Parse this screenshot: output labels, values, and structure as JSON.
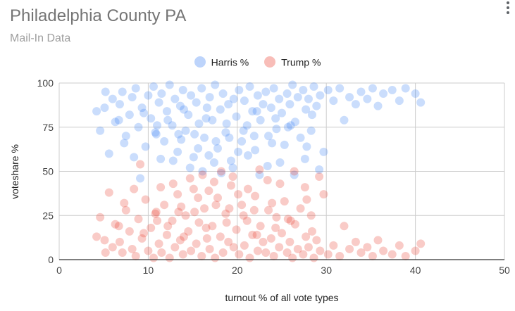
{
  "header": {
    "title": "Philadelphia County PA",
    "subtitle": "Mail-In Data"
  },
  "colors": {
    "harris": "#4285f4",
    "trump": "#ea4335",
    "grid": "#cccccc",
    "axis": "#333333"
  },
  "chart_data": {
    "type": "scatter",
    "title": "Philadelphia County PA",
    "subtitle": "Mail-In Data",
    "xlabel": "turnout % of all vote types",
    "ylabel": "voteshare %",
    "xlim": [
      0,
      50
    ],
    "ylim": [
      0,
      100
    ],
    "x_ticks": [
      "0",
      "10",
      "20",
      "30",
      "40",
      "50"
    ],
    "y_ticks": [
      "0",
      "25",
      "50",
      "75",
      "100"
    ],
    "grid": true,
    "legend_position": "top-center",
    "series": [
      {
        "name": "Harris %",
        "color": "#4285f4",
        "points": [
          [
            4.2,
            84
          ],
          [
            4.6,
            73
          ],
          [
            5.1,
            86
          ],
          [
            5.6,
            60
          ],
          [
            5.2,
            95
          ],
          [
            6.0,
            91
          ],
          [
            6.3,
            78
          ],
          [
            6.8,
            88
          ],
          [
            7.1,
            95
          ],
          [
            7.5,
            70
          ],
          [
            7.9,
            82
          ],
          [
            8.2,
            92
          ],
          [
            8.6,
            97
          ],
          [
            8.9,
            75
          ],
          [
            9.3,
            86
          ],
          [
            9.7,
            64
          ],
          [
            10.0,
            93
          ],
          [
            10.3,
            80
          ],
          [
            10.6,
            98
          ],
          [
            10.9,
            71
          ],
          [
            11.2,
            89
          ],
          [
            11.5,
            94
          ],
          [
            11.8,
            67
          ],
          [
            12.1,
            84
          ],
          [
            12.4,
            99
          ],
          [
            12.7,
            76
          ],
          [
            13.0,
            91
          ],
          [
            13.3,
            61
          ],
          [
            13.6,
            87
          ],
          [
            13.9,
            96
          ],
          [
            14.2,
            73
          ],
          [
            14.5,
            82
          ],
          [
            14.8,
            93
          ],
          [
            15.1,
            58
          ],
          [
            15.4,
            89
          ],
          [
            15.7,
            77
          ],
          [
            16.0,
            97
          ],
          [
            16.3,
            69
          ],
          [
            16.6,
            86
          ],
          [
            16.9,
            92
          ],
          [
            17.2,
            79
          ],
          [
            17.5,
            99
          ],
          [
            17.8,
            63
          ],
          [
            18.1,
            85
          ],
          [
            18.4,
            94
          ],
          [
            18.7,
            72
          ],
          [
            19.0,
            88
          ],
          [
            19.3,
            56
          ],
          [
            19.6,
            91
          ],
          [
            19.9,
            81
          ],
          [
            20.2,
            96
          ],
          [
            20.5,
            67
          ],
          [
            20.8,
            90
          ],
          [
            21.1,
            76
          ],
          [
            21.4,
            98
          ],
          [
            21.7,
            84
          ],
          [
            22.0,
            62
          ],
          [
            22.3,
            93
          ],
          [
            22.6,
            79
          ],
          [
            22.9,
            88
          ],
          [
            23.2,
            95
          ],
          [
            23.5,
            70
          ],
          [
            23.8,
            86
          ],
          [
            24.1,
            97
          ],
          [
            24.4,
            74
          ],
          [
            24.7,
            91
          ],
          [
            25.0,
            83
          ],
          [
            25.3,
            65
          ],
          [
            25.6,
            94
          ],
          [
            25.9,
            88
          ],
          [
            26.2,
            99
          ],
          [
            26.5,
            78
          ],
          [
            26.8,
            92
          ],
          [
            27.1,
            69
          ],
          [
            27.4,
            96
          ],
          [
            27.7,
            85
          ],
          [
            28.0,
            91
          ],
          [
            28.3,
            73
          ],
          [
            28.6,
            98
          ],
          [
            28.9,
            87
          ],
          [
            29.3,
            93
          ],
          [
            29.7,
            61
          ],
          [
            30.2,
            96
          ],
          [
            30.8,
            90
          ],
          [
            31.5,
            97
          ],
          [
            32.0,
            79
          ],
          [
            32.6,
            92
          ],
          [
            33.3,
            88
          ],
          [
            33.9,
            95
          ],
          [
            34.6,
            91
          ],
          [
            35.2,
            97
          ],
          [
            35.8,
            87
          ],
          [
            36.4,
            94
          ],
          [
            37.4,
            96
          ],
          [
            38.2,
            90
          ],
          [
            38.9,
            97
          ],
          [
            40.0,
            94
          ],
          [
            40.6,
            89
          ],
          [
            9.1,
            46
          ],
          [
            12.8,
            56
          ],
          [
            14.7,
            52
          ],
          [
            16.1,
            50
          ],
          [
            17.4,
            55
          ],
          [
            18.2,
            49
          ],
          [
            19.5,
            52
          ],
          [
            21.2,
            59
          ],
          [
            22.5,
            48
          ],
          [
            23.4,
            53
          ],
          [
            24.8,
            55
          ],
          [
            26.4,
            48
          ],
          [
            27.6,
            57
          ],
          [
            29.2,
            51
          ],
          [
            7.3,
            66
          ],
          [
            11.4,
            57
          ],
          [
            13.7,
            68
          ],
          [
            15.6,
            63
          ],
          [
            16.8,
            59
          ],
          [
            20.1,
            61
          ],
          [
            23.9,
            66
          ],
          [
            27.8,
            64
          ],
          [
            8.4,
            58
          ],
          [
            10.8,
            72
          ],
          [
            12.2,
            79
          ],
          [
            14.0,
            85
          ],
          [
            15.2,
            71
          ],
          [
            17.6,
            67
          ],
          [
            18.8,
            77
          ],
          [
            20.7,
            73
          ],
          [
            21.9,
            70
          ],
          [
            24.3,
            80
          ],
          [
            25.7,
            75
          ],
          [
            28.4,
            82
          ],
          [
            6.7,
            79
          ],
          [
            9.5,
            83
          ],
          [
            11.0,
            76
          ],
          [
            13.4,
            71
          ],
          [
            16.5,
            80
          ],
          [
            19.1,
            69
          ],
          [
            22.2,
            84
          ],
          [
            26.0,
            76
          ]
        ]
      },
      {
        "name": "Trump %",
        "color": "#ea4335",
        "points": [
          [
            4.2,
            13
          ],
          [
            4.6,
            24
          ],
          [
            5.1,
            11
          ],
          [
            5.6,
            38
          ],
          [
            5.2,
            4
          ],
          [
            6.0,
            7
          ],
          [
            6.3,
            20
          ],
          [
            6.8,
            10
          ],
          [
            7.1,
            4
          ],
          [
            7.5,
            28
          ],
          [
            7.9,
            16
          ],
          [
            8.2,
            6
          ],
          [
            8.6,
            2
          ],
          [
            8.9,
            23
          ],
          [
            9.3,
            12
          ],
          [
            9.7,
            34
          ],
          [
            10.0,
            5
          ],
          [
            10.3,
            18
          ],
          [
            10.6,
            1
          ],
          [
            10.9,
            27
          ],
          [
            11.2,
            9
          ],
          [
            11.5,
            4
          ],
          [
            11.8,
            31
          ],
          [
            12.1,
            14
          ],
          [
            12.4,
            1
          ],
          [
            12.7,
            22
          ],
          [
            13.0,
            7
          ],
          [
            13.3,
            37
          ],
          [
            13.6,
            11
          ],
          [
            13.9,
            3
          ],
          [
            14.2,
            25
          ],
          [
            14.5,
            16
          ],
          [
            14.8,
            5
          ],
          [
            15.1,
            40
          ],
          [
            15.4,
            9
          ],
          [
            15.7,
            21
          ],
          [
            16.0,
            2
          ],
          [
            16.3,
            29
          ],
          [
            16.6,
            12
          ],
          [
            16.9,
            6
          ],
          [
            17.2,
            19
          ],
          [
            17.5,
            1
          ],
          [
            17.8,
            35
          ],
          [
            18.1,
            13
          ],
          [
            18.4,
            4
          ],
          [
            18.7,
            26
          ],
          [
            19.0,
            10
          ],
          [
            19.3,
            42
          ],
          [
            19.6,
            7
          ],
          [
            19.9,
            17
          ],
          [
            20.2,
            3
          ],
          [
            20.5,
            31
          ],
          [
            20.8,
            8
          ],
          [
            21.1,
            22
          ],
          [
            21.4,
            1
          ],
          [
            21.7,
            14
          ],
          [
            22.0,
            36
          ],
          [
            22.3,
            5
          ],
          [
            22.6,
            19
          ],
          [
            22.9,
            10
          ],
          [
            23.2,
            4
          ],
          [
            23.5,
            28
          ],
          [
            23.8,
            12
          ],
          [
            24.1,
            2
          ],
          [
            24.4,
            24
          ],
          [
            24.7,
            7
          ],
          [
            25.0,
            15
          ],
          [
            25.3,
            33
          ],
          [
            25.6,
            4
          ],
          [
            25.9,
            10
          ],
          [
            26.2,
            1
          ],
          [
            26.5,
            20
          ],
          [
            26.8,
            6
          ],
          [
            27.1,
            29
          ],
          [
            27.4,
            3
          ],
          [
            27.7,
            13
          ],
          [
            28.0,
            7
          ],
          [
            28.3,
            25
          ],
          [
            28.6,
            1
          ],
          [
            28.9,
            11
          ],
          [
            29.3,
            5
          ],
          [
            29.7,
            37
          ],
          [
            30.2,
            3
          ],
          [
            30.8,
            8
          ],
          [
            31.5,
            2
          ],
          [
            32.0,
            19
          ],
          [
            32.6,
            6
          ],
          [
            33.3,
            10
          ],
          [
            33.9,
            4
          ],
          [
            34.6,
            7
          ],
          [
            35.2,
            2
          ],
          [
            35.8,
            11
          ],
          [
            36.4,
            5
          ],
          [
            37.4,
            3
          ],
          [
            38.2,
            8
          ],
          [
            38.9,
            2
          ],
          [
            40.0,
            5
          ],
          [
            40.6,
            9
          ],
          [
            9.1,
            54
          ],
          [
            12.8,
            43
          ],
          [
            14.7,
            46
          ],
          [
            16.1,
            48
          ],
          [
            17.4,
            44
          ],
          [
            18.2,
            50
          ],
          [
            19.5,
            47
          ],
          [
            21.2,
            40
          ],
          [
            22.5,
            51
          ],
          [
            23.4,
            45
          ],
          [
            24.8,
            43
          ],
          [
            26.4,
            50
          ],
          [
            27.6,
            41
          ],
          [
            29.2,
            47
          ],
          [
            7.3,
            32
          ],
          [
            11.4,
            41
          ],
          [
            13.7,
            30
          ],
          [
            15.6,
            35
          ],
          [
            16.8,
            39
          ],
          [
            20.1,
            37
          ],
          [
            23.9,
            32
          ],
          [
            27.8,
            34
          ],
          [
            8.4,
            40
          ],
          [
            10.8,
            26
          ],
          [
            12.2,
            19
          ],
          [
            14.0,
            13
          ],
          [
            15.2,
            27
          ],
          [
            17.6,
            31
          ],
          [
            18.8,
            21
          ],
          [
            20.7,
            25
          ],
          [
            21.9,
            28
          ],
          [
            24.3,
            18
          ],
          [
            25.7,
            23
          ],
          [
            28.4,
            16
          ],
          [
            6.7,
            19
          ],
          [
            9.5,
            15
          ],
          [
            11.0,
            22
          ],
          [
            13.4,
            27
          ],
          [
            16.5,
            18
          ],
          [
            19.1,
            29
          ],
          [
            22.2,
            14
          ],
          [
            26.0,
            22
          ]
        ]
      }
    ]
  }
}
